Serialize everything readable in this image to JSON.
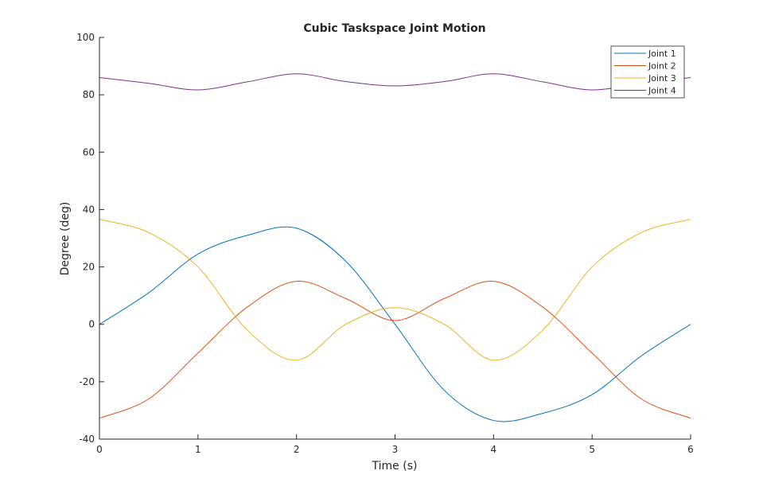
{
  "chart_data": {
    "type": "line",
    "title": "Cubic Taskspace Joint Motion",
    "xlabel": "Time (s)",
    "ylabel": "Degree (deg)",
    "xlim": [
      0,
      6
    ],
    "ylim": [
      -40,
      100
    ],
    "xticks": [
      "0",
      "1",
      "2",
      "3",
      "4",
      "5",
      "6"
    ],
    "yticks": [
      "-40",
      "-20",
      "0",
      "20",
      "40",
      "60",
      "80",
      "100"
    ],
    "grid": false,
    "legend_position": "top-right",
    "series": [
      {
        "name": "Joint 1",
        "color": "#0072BD",
        "x": [
          0,
          0.5,
          1,
          1.5,
          2,
          2.5,
          3,
          3.5,
          4,
          4.5,
          5,
          5.5,
          6
        ],
        "y": [
          0,
          11,
          24.5,
          31,
          33.5,
          22,
          0,
          -23,
          -33.5,
          -31,
          -24.5,
          -11,
          0
        ]
      },
      {
        "name": "Joint 2",
        "color": "#D95319",
        "x": [
          0,
          0.5,
          1,
          1.5,
          2,
          2.5,
          3,
          3.5,
          4,
          4.5,
          5,
          5.5,
          6
        ],
        "y": [
          -32.7,
          -26,
          -10,
          6,
          15,
          9,
          1.3,
          9,
          15,
          6,
          -10,
          -26,
          -32.7
        ]
      },
      {
        "name": "Joint 3",
        "color": "#EDB120",
        "x": [
          0,
          0.5,
          1,
          1.5,
          2,
          2.5,
          3,
          3.5,
          4,
          4.5,
          5,
          5.5,
          6
        ],
        "y": [
          36.6,
          32,
          20,
          -2,
          -12.5,
          0,
          5.8,
          0,
          -12.5,
          -2,
          20,
          32,
          36.6
        ]
      },
      {
        "name": "Joint 4",
        "color": "#7E2F8E",
        "x": [
          0,
          0.5,
          1,
          1.5,
          2,
          2.5,
          3,
          3.5,
          4,
          4.5,
          5,
          5.5,
          6
        ],
        "y": [
          86,
          84,
          81.7,
          84.5,
          87.3,
          84.6,
          83.1,
          84.6,
          87.3,
          84.5,
          81.7,
          84,
          86
        ]
      }
    ]
  }
}
